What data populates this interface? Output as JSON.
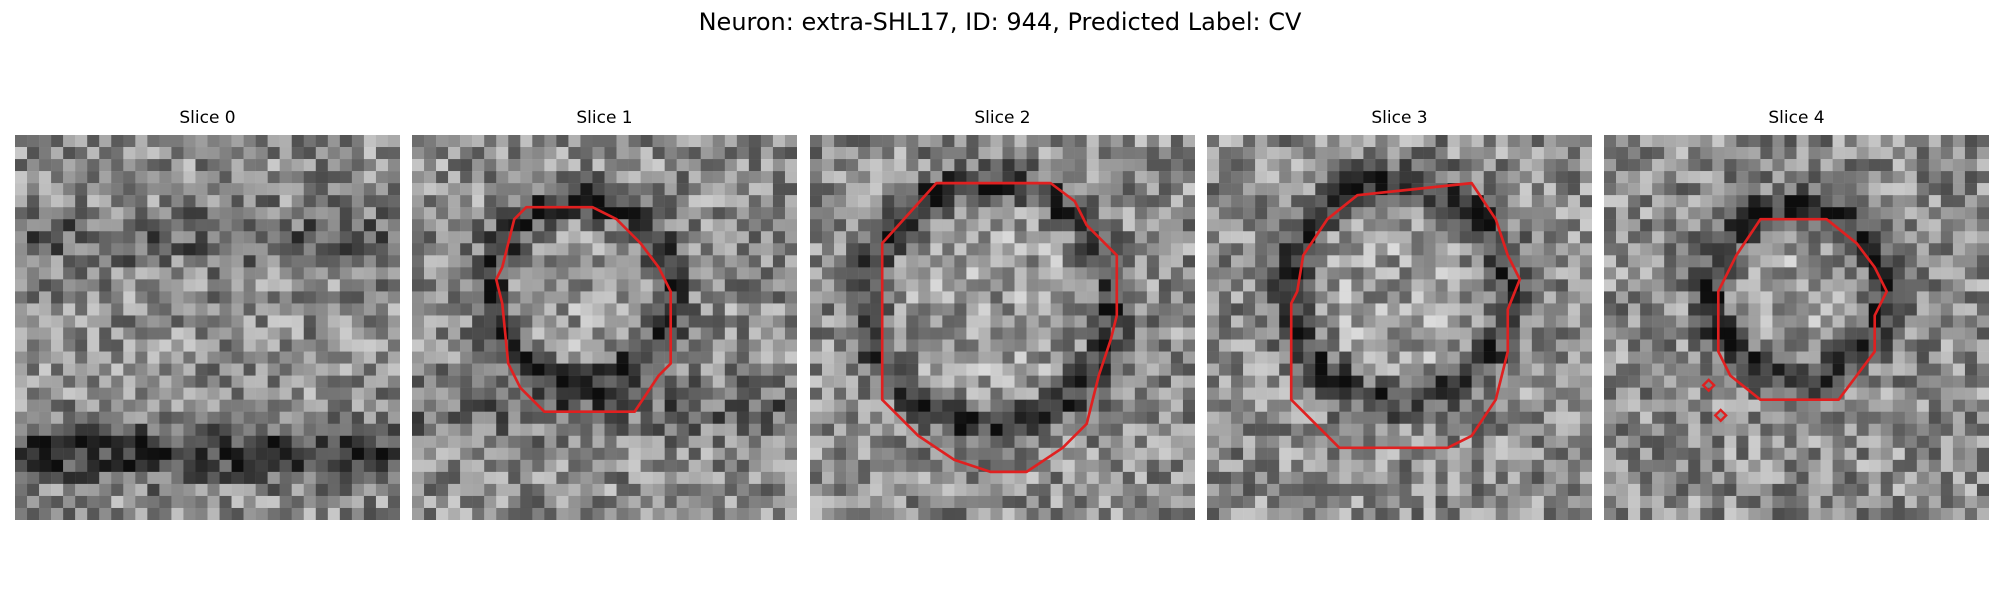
{
  "figure": {
    "title": "Neuron: extra-SHL17, ID: 944, Predicted Label: CV"
  },
  "panels": [
    {
      "title": "Slice 0",
      "has_contour": false
    },
    {
      "title": "Slice 1",
      "has_contour": true
    },
    {
      "title": "Slice 2",
      "has_contour": true
    },
    {
      "title": "Slice 3",
      "has_contour": true
    },
    {
      "title": "Slice 4",
      "has_contour": true
    }
  ],
  "colors": {
    "contour": "#e02020",
    "background": "#ffffff"
  }
}
